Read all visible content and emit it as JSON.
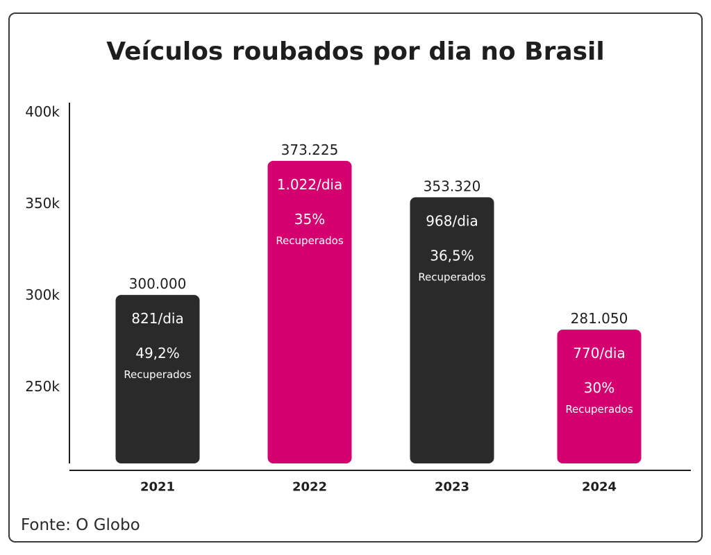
{
  "source": "Fonte: O Globo",
  "chart_data": {
    "type": "bar",
    "title": "Veículos roubados por dia no Brasil",
    "categories": [
      "2021",
      "2022",
      "2023",
      "2024"
    ],
    "values": [
      300000,
      373225,
      353320,
      281050
    ],
    "value_labels": [
      "300.000",
      "373.225",
      "353.320",
      "281.050"
    ],
    "per_day_labels": [
      "821/dia",
      "1.022/dia",
      "968/dia",
      "770/dia"
    ],
    "recovered_pct_labels": [
      "49,2%",
      "35%",
      "36,5%",
      "30%"
    ],
    "recovered_label": "Recuperados",
    "bar_colors": [
      "#2a2a2a",
      "#d5006f",
      "#2a2a2a",
      "#d5006f"
    ],
    "yticks": [
      {
        "value": 400000,
        "label": "400k"
      },
      {
        "value": 350000,
        "label": "350k"
      },
      {
        "value": 300000,
        "label": "300k"
      },
      {
        "value": 250000,
        "label": "250k"
      }
    ],
    "ylim": [
      208000,
      405000
    ],
    "grid": false
  }
}
